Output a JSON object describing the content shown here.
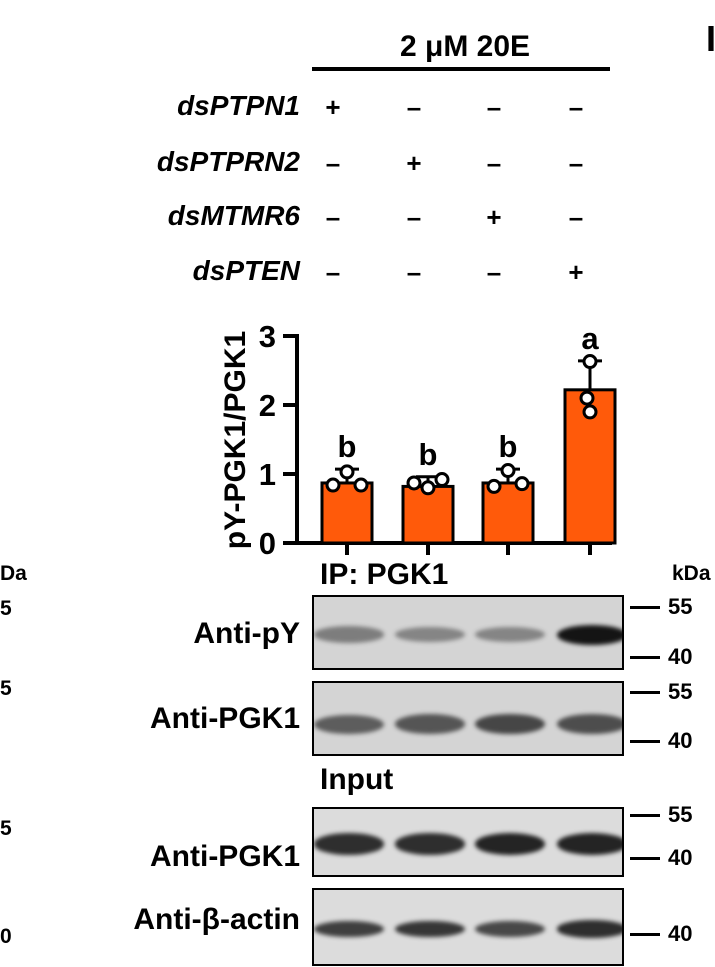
{
  "treatment": {
    "label": "2 μM 20E"
  },
  "conditions": [
    {
      "name": "dsPTPN1",
      "marks": [
        "+",
        "–",
        "–",
        "–"
      ]
    },
    {
      "name": "dsPTPRN2",
      "marks": [
        "–",
        "+",
        "–",
        "–"
      ]
    },
    {
      "name": "dsMTMR6",
      "marks": [
        "–",
        "–",
        "+",
        "–"
      ]
    },
    {
      "name": "dsPTEN",
      "marks": [
        "–",
        "–",
        "–",
        "+"
      ]
    }
  ],
  "chart_data": {
    "type": "bar",
    "categories": [
      "dsPTPN1",
      "dsPTPRN2",
      "dsMTMR6",
      "dsPTEN"
    ],
    "values": [
      0.87,
      0.82,
      0.87,
      2.22
    ],
    "errors": [
      0.2,
      0.14,
      0.2,
      0.42
    ],
    "points": [
      [
        1.03,
        0.84,
        0.84
      ],
      [
        0.8,
        0.87,
        0.92
      ],
      [
        1.05,
        0.82,
        0.86
      ],
      [
        2.63,
        2.1,
        1.9
      ]
    ],
    "letters": [
      "b",
      "b",
      "b",
      "a"
    ],
    "ylabel": "pY-PGK1/PGK1",
    "ylim": [
      0,
      3
    ],
    "yticks": [
      "0",
      "1",
      "2",
      "3"
    ],
    "bar_color": "#ff5a0a"
  },
  "ip_section": {
    "label": "IP: PGK1"
  },
  "input_section": {
    "label": "Input"
  },
  "kda_left": {
    "unit": "Da",
    "markers": [
      "5",
      "5",
      "5",
      "0"
    ]
  },
  "kda_right": {
    "unit": "kDa"
  },
  "blots": [
    {
      "antibody": "Anti-pY",
      "markers": [
        "55",
        "40"
      ],
      "intensities": [
        0.35,
        0.3,
        0.3,
        1.0
      ]
    },
    {
      "antibody": "Anti-PGK1",
      "markers": [
        "55",
        "40"
      ],
      "intensities": [
        0.55,
        0.6,
        0.7,
        0.65
      ]
    },
    {
      "antibody": "Anti-PGK1",
      "markers": [
        "55",
        "40"
      ],
      "intensities": [
        0.85,
        0.85,
        0.9,
        0.9
      ]
    },
    {
      "antibody": "Anti-β-actin",
      "markers": [
        "40"
      ],
      "intensities": [
        0.75,
        0.8,
        0.7,
        0.85
      ]
    }
  ],
  "panel_letter": {
    "label": "I"
  }
}
